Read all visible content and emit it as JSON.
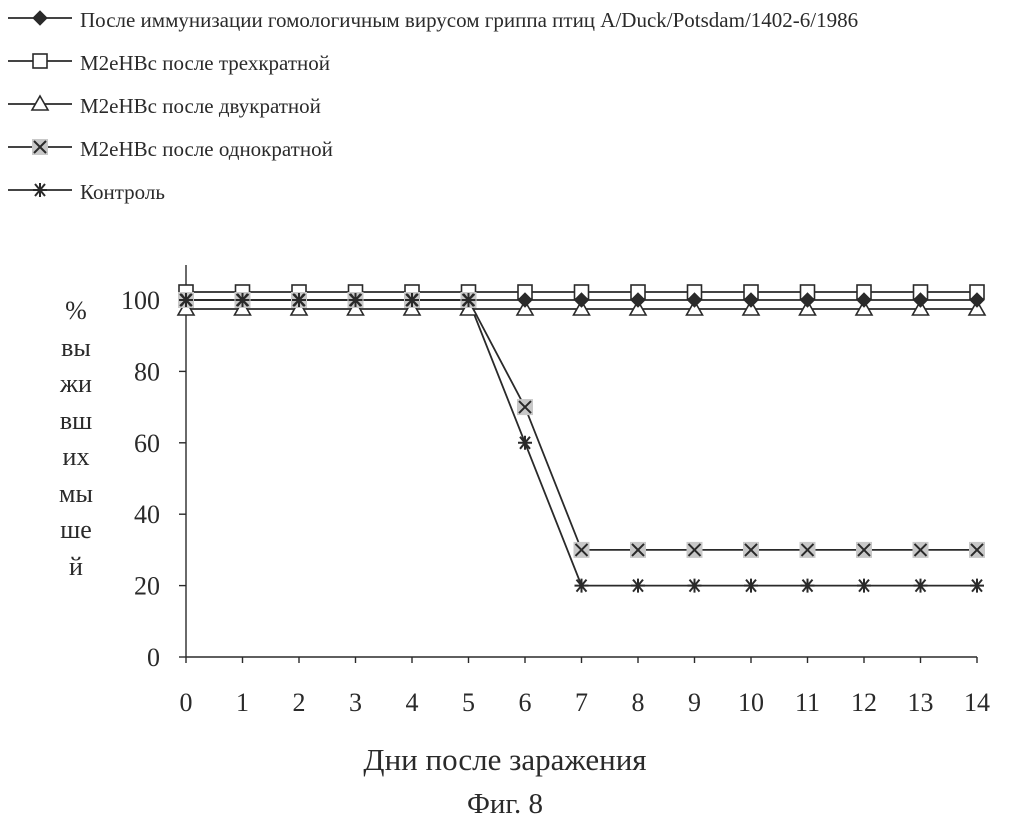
{
  "legend": [
    {
      "label": "После иммунизации гомологичным вирусом гриппа птиц A/Duck/Potsdam/1402-6/1986",
      "marker": "diamond"
    },
    {
      "label": "M2eHBc после трехкратной",
      "marker": "square"
    },
    {
      "label": "M2eHBc после двукратной",
      "marker": "triangle"
    },
    {
      "label": "M2eHBc после однократной",
      "marker": "x"
    },
    {
      "label": "Контроль",
      "marker": "star"
    }
  ],
  "ylabel_lines": [
    "%",
    "вы",
    "жи",
    "вш",
    "их",
    "мы",
    "ше",
    "й"
  ],
  "xlabel": "Дни после заражения",
  "figure_caption": "Фиг. 8",
  "colors": {
    "line": "#2a2a2a",
    "marker_fill": "#ffffff",
    "shade": "#c8c8c8"
  },
  "chart_data": {
    "type": "line",
    "x": [
      0,
      1,
      2,
      3,
      4,
      5,
      6,
      7,
      8,
      9,
      10,
      11,
      12,
      13,
      14
    ],
    "xlim": [
      0,
      14
    ],
    "ylim": [
      0,
      100
    ],
    "yticks": [
      0,
      20,
      40,
      60,
      80,
      100
    ],
    "grid": false,
    "legend_position": "top-left",
    "series": [
      {
        "name": "После иммунизации гомологичным вирусом гриппа птиц A/Duck/Potsdam/1402-6/1986",
        "marker": "diamond",
        "values": [
          100,
          100,
          100,
          100,
          100,
          100,
          100,
          100,
          100,
          100,
          100,
          100,
          100,
          100,
          100
        ]
      },
      {
        "name": "M2eHBc после трехкратной",
        "marker": "square",
        "values": [
          100,
          100,
          100,
          100,
          100,
          100,
          100,
          100,
          100,
          100,
          100,
          100,
          100,
          100,
          100
        ]
      },
      {
        "name": "M2eHBc после двукратной",
        "marker": "triangle",
        "values": [
          100,
          100,
          100,
          100,
          100,
          100,
          100,
          100,
          100,
          100,
          100,
          100,
          100,
          100,
          100
        ]
      },
      {
        "name": "M2eHBc после однократной",
        "marker": "x",
        "values": [
          100,
          100,
          100,
          100,
          100,
          100,
          70,
          30,
          30,
          30,
          30,
          30,
          30,
          30,
          30
        ]
      },
      {
        "name": "Контроль",
        "marker": "star",
        "values": [
          100,
          100,
          100,
          100,
          100,
          100,
          60,
          20,
          20,
          20,
          20,
          20,
          20,
          20,
          20
        ]
      }
    ]
  }
}
